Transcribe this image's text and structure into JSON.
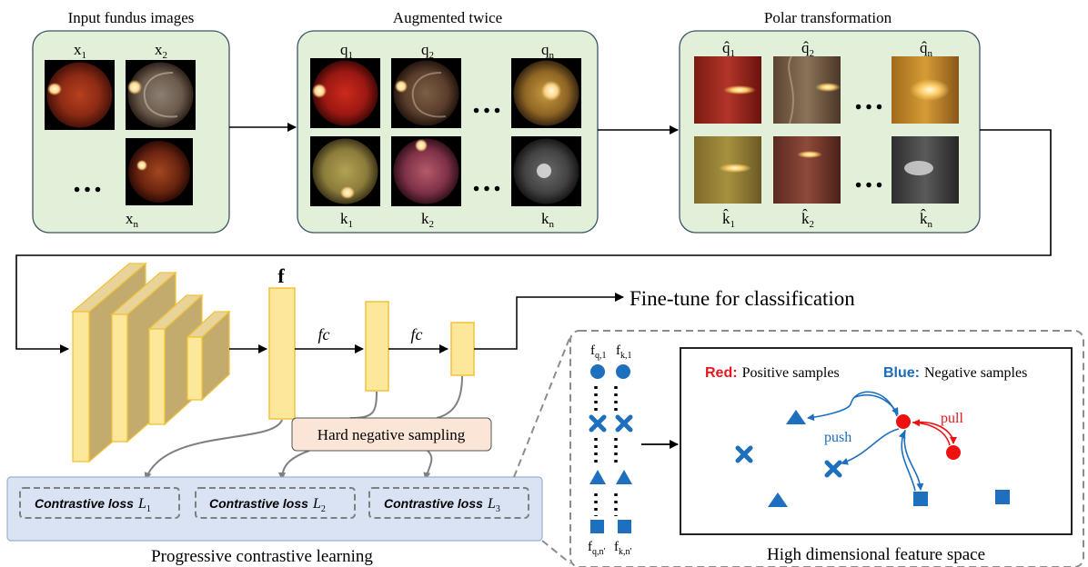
{
  "stages": {
    "input_title": "Input fundus images",
    "augment_title": "Augmented twice",
    "polar_title": "Polar transformation"
  },
  "input_labels": {
    "x1": "x",
    "x1_sub": "1",
    "x2": "x",
    "x2_sub": "2",
    "xn": "x",
    "xn_sub": "n"
  },
  "augment_labels": {
    "q1": "q",
    "q1_sub": "1",
    "q2": "q",
    "q2_sub": "2",
    "qn": "q",
    "qn_sub": "n",
    "k1": "k",
    "k1_sub": "1",
    "k2": "k",
    "k2_sub": "2",
    "kn": "k",
    "kn_sub": "n"
  },
  "polar_labels": {
    "q1": "q̂",
    "q1_sub": "1",
    "q2": "q̂",
    "q2_sub": "2",
    "qn": "q̂",
    "qn_sub": "n",
    "k1": "k̂",
    "k1_sub": "1",
    "k2": "k̂",
    "k2_sub": "2",
    "kn": "k̂",
    "kn_sub": "n"
  },
  "ellipsis": "…",
  "network": {
    "feature_label": "f",
    "fc1": "fc",
    "fc2": "fc",
    "finetune": "Fine-tune for classification",
    "hard_negative": "Hard negative sampling"
  },
  "losses": {
    "l1": "Contrastive loss",
    "l1_sym": "L",
    "l1_sub": "1",
    "l2": "Contrastive loss",
    "l2_sym": "L",
    "l2_sub": "2",
    "l3": "Contrastive loss",
    "l3_sym": "L",
    "l3_sub": "3",
    "caption": "Progressive contrastive learning"
  },
  "feature_space": {
    "fq1": "f",
    "fq1_sub": "q,1",
    "fk1": "f",
    "fk1_sub": "k,1",
    "fqn": "f",
    "fqn_sub": "q,n'",
    "fkn": "f",
    "fkn_sub": "k,n'",
    "red_key": "Red:",
    "red_desc": "Positive samples",
    "blue_key": "Blue:",
    "blue_desc": "Negative samples",
    "push": "push",
    "pull": "pull",
    "caption": "High dimensional feature space"
  },
  "colors": {
    "panel_fill": "#e2efd9",
    "panel_stroke": "#3b5566",
    "loss_panel_fill": "#dae3f3",
    "loss_panel_stroke": "#9cb0cc",
    "hard_neg_fill": "#fbe5d6",
    "block_front": "#fde79a",
    "block_side": "#c2ab6d",
    "block_top": "#e8d49a",
    "block_stroke": "#f0c23a",
    "red": "#ee1111",
    "blue": "#1f6fbf",
    "red_text": "#e8161e",
    "blue_text": "#1a6bb8"
  }
}
